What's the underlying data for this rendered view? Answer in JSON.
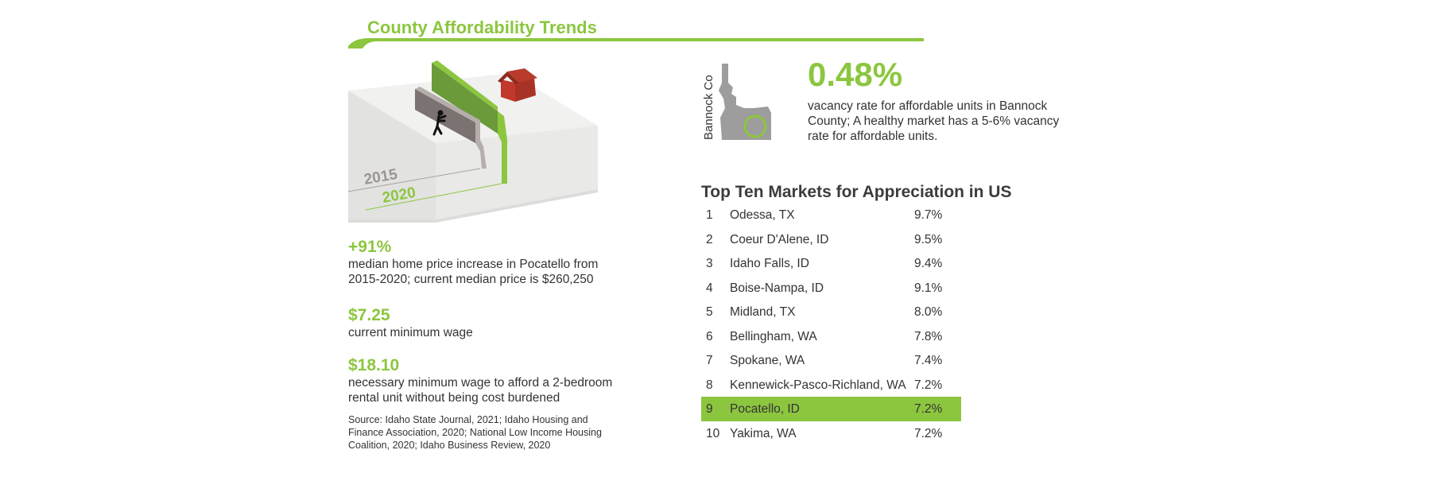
{
  "header": {
    "title": "County Affordability Trends"
  },
  "illustration": {
    "label_2015": "2015",
    "label_2020": "2020"
  },
  "stats": [
    {
      "value": "+91%",
      "description": "median home price increase in Pocatello from 2015-2020; current median price is $260,250"
    },
    {
      "value": "$7.25",
      "description": "current minimum wage"
    },
    {
      "value": "$18.10",
      "description": "necessary minimum wage to afford a 2-bedroom rental unit without being cost burdened"
    }
  ],
  "source": "Source: Idaho State Journal, 2021; Idaho Housing and Finance Association, 2020; National Low Income Housing Coalition, 2020; Idaho Business Review, 2020",
  "vacancy": {
    "county_label": "Bannock Co",
    "value": "0.48%",
    "description": "vacancy rate for affordable units in Bannock County; A healthy market has a 5-6% vacancy rate for affordable units."
  },
  "markets": {
    "title": "Top Ten Markets for Appreciation in US",
    "highlight_color": "#8cc63f",
    "rows": [
      {
        "rank": "1",
        "city": "Odessa, TX",
        "pct": "9.7%"
      },
      {
        "rank": "2",
        "city": "Coeur D'Alene, ID",
        "pct": "9.5%"
      },
      {
        "rank": "3",
        "city": "Idaho Falls, ID",
        "pct": "9.4%"
      },
      {
        "rank": "4",
        "city": "Boise-Nampa, ID",
        "pct": "9.1%"
      },
      {
        "rank": "5",
        "city": "Midland, TX",
        "pct": "8.0%"
      },
      {
        "rank": "6",
        "city": "Bellingham, WA",
        "pct": "7.8%"
      },
      {
        "rank": "7",
        "city": "Spokane, WA",
        "pct": "7.4%"
      },
      {
        "rank": "8",
        "city": "Kennewick-Pasco-Richland, WA",
        "pct": "7.2%"
      },
      {
        "rank": "9",
        "city": "Pocatello, ID",
        "pct": "7.2%",
        "highlight": true
      },
      {
        "rank": "10",
        "city": "Yakima, WA",
        "pct": "7.2%"
      }
    ]
  }
}
